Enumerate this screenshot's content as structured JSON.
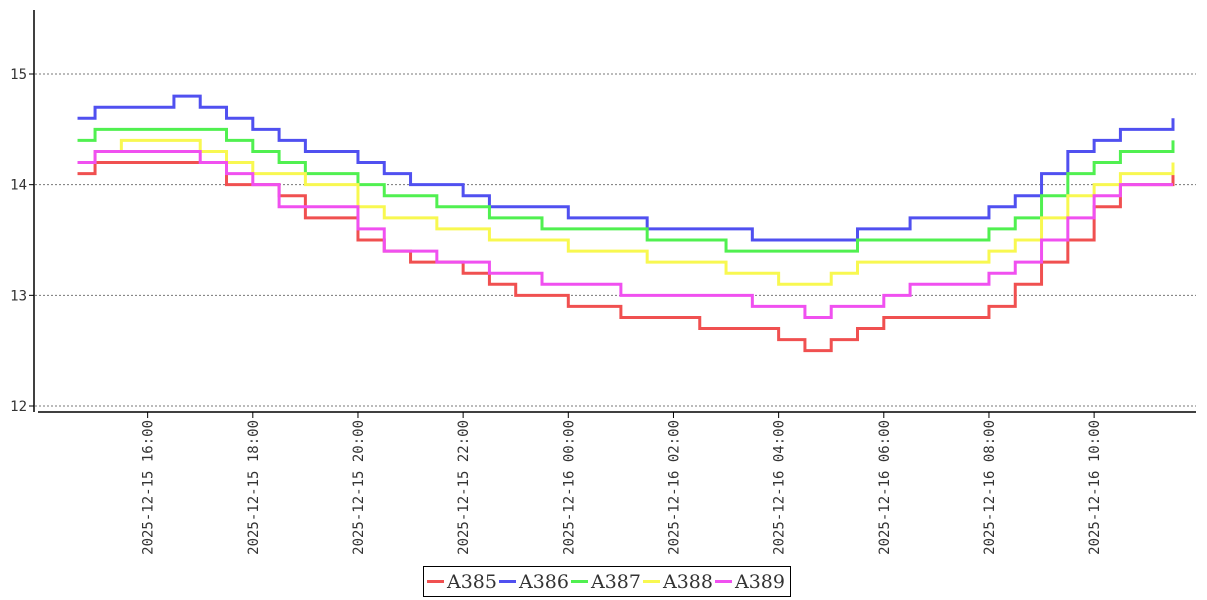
{
  "chart_data": {
    "type": "line",
    "title": "",
    "xlabel": "",
    "ylabel": "",
    "ylim": [
      12,
      15.5
    ],
    "xlim": [
      "2025-12-15 14:20",
      "2025-12-16 11:30"
    ],
    "yticks": [
      "12",
      "13",
      "14",
      "15"
    ],
    "xticks": [
      "2025-12-15 16:00",
      "2025-12-15 18:00",
      "2025-12-15 20:00",
      "2025-12-15 22:00",
      "2025-12-16 00:00",
      "2025-12-16 02:00",
      "2025-12-16 04:00",
      "2025-12-16 06:00",
      "2025-12-16 08:00",
      "2025-12-16 10:00"
    ],
    "grid": "horizontal dotted",
    "legend_position": "bottom-center",
    "x": [
      "2025-12-15 14:40",
      "2025-12-15 15:00",
      "2025-12-15 15:30",
      "2025-12-15 16:00",
      "2025-12-15 16:30",
      "2025-12-15 17:00",
      "2025-12-15 17:30",
      "2025-12-15 18:00",
      "2025-12-15 18:30",
      "2025-12-15 19:00",
      "2025-12-15 19:30",
      "2025-12-15 20:00",
      "2025-12-15 20:30",
      "2025-12-15 21:00",
      "2025-12-15 21:30",
      "2025-12-15 22:00",
      "2025-12-15 22:30",
      "2025-12-15 23:00",
      "2025-12-15 23:30",
      "2025-12-16 00:00",
      "2025-12-16 00:30",
      "2025-12-16 01:00",
      "2025-12-16 01:30",
      "2025-12-16 02:00",
      "2025-12-16 02:30",
      "2025-12-16 03:00",
      "2025-12-16 03:30",
      "2025-12-16 04:00",
      "2025-12-16 04:30",
      "2025-12-16 05:00",
      "2025-12-16 05:30",
      "2025-12-16 06:00",
      "2025-12-16 06:30",
      "2025-12-16 07:00",
      "2025-12-16 07:30",
      "2025-12-16 08:00",
      "2025-12-16 08:30",
      "2025-12-16 09:00",
      "2025-12-16 09:30",
      "2025-12-16 10:00",
      "2025-12-16 10:30",
      "2025-12-16 11:00",
      "2025-12-16 11:30"
    ],
    "series": [
      {
        "name": "A385",
        "color": "#f05050",
        "values": [
          14.1,
          14.2,
          14.2,
          14.2,
          14.2,
          14.2,
          14.0,
          14.0,
          13.9,
          13.7,
          13.7,
          13.5,
          13.4,
          13.3,
          13.3,
          13.2,
          13.1,
          13.0,
          13.0,
          12.9,
          12.9,
          12.8,
          12.8,
          12.8,
          12.7,
          12.7,
          12.7,
          12.6,
          12.5,
          12.6,
          12.7,
          12.8,
          12.8,
          12.8,
          12.8,
          12.9,
          13.1,
          13.3,
          13.5,
          13.8,
          14.0,
          14.0,
          14.1
        ]
      },
      {
        "name": "A386",
        "color": "#5050f0",
        "values": [
          14.6,
          14.7,
          14.7,
          14.7,
          14.8,
          14.7,
          14.6,
          14.5,
          14.4,
          14.3,
          14.3,
          14.2,
          14.1,
          14.0,
          14.0,
          13.9,
          13.8,
          13.8,
          13.8,
          13.7,
          13.7,
          13.7,
          13.6,
          13.6,
          13.6,
          13.6,
          13.5,
          13.5,
          13.5,
          13.5,
          13.6,
          13.6,
          13.7,
          13.7,
          13.7,
          13.8,
          13.9,
          14.1,
          14.3,
          14.4,
          14.5,
          14.5,
          14.6
        ]
      },
      {
        "name": "A387",
        "color": "#50f050",
        "values": [
          14.4,
          14.5,
          14.5,
          14.5,
          14.5,
          14.5,
          14.4,
          14.3,
          14.2,
          14.1,
          14.1,
          14.0,
          13.9,
          13.9,
          13.8,
          13.8,
          13.7,
          13.7,
          13.6,
          13.6,
          13.6,
          13.6,
          13.5,
          13.5,
          13.5,
          13.4,
          13.4,
          13.4,
          13.4,
          13.4,
          13.5,
          13.5,
          13.5,
          13.5,
          13.5,
          13.6,
          13.7,
          13.9,
          14.1,
          14.2,
          14.3,
          14.3,
          14.4
        ]
      },
      {
        "name": "A388",
        "color": "#f8f850",
        "values": [
          14.2,
          14.3,
          14.4,
          14.4,
          14.4,
          14.3,
          14.2,
          14.1,
          14.1,
          14.0,
          14.0,
          13.8,
          13.7,
          13.7,
          13.6,
          13.6,
          13.5,
          13.5,
          13.5,
          13.4,
          13.4,
          13.4,
          13.3,
          13.3,
          13.3,
          13.2,
          13.2,
          13.1,
          13.1,
          13.2,
          13.3,
          13.3,
          13.3,
          13.3,
          13.3,
          13.4,
          13.5,
          13.7,
          13.9,
          14.0,
          14.1,
          14.1,
          14.2
        ]
      },
      {
        "name": "A389",
        "color": "#f050f0",
        "values": [
          14.2,
          14.3,
          14.3,
          14.3,
          14.3,
          14.2,
          14.1,
          14.0,
          13.8,
          13.8,
          13.8,
          13.6,
          13.4,
          13.4,
          13.3,
          13.3,
          13.2,
          13.2,
          13.1,
          13.1,
          13.1,
          13.0,
          13.0,
          13.0,
          13.0,
          13.0,
          12.9,
          12.9,
          12.8,
          12.9,
          12.9,
          13.0,
          13.1,
          13.1,
          13.1,
          13.2,
          13.3,
          13.5,
          13.7,
          13.9,
          14.0,
          14.0,
          14.0
        ]
      }
    ]
  }
}
